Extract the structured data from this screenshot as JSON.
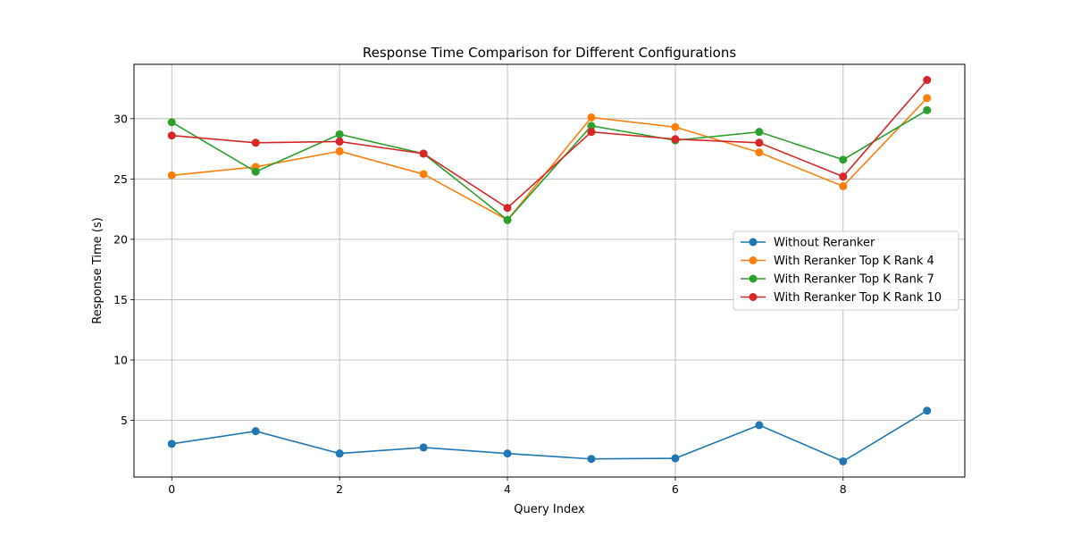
{
  "chart_data": {
    "type": "line",
    "title": "Response Time Comparison for Different Configurations",
    "xlabel": "Query Index",
    "ylabel": "Response Time (s)",
    "x": [
      0,
      1,
      2,
      3,
      4,
      5,
      6,
      7,
      8,
      9
    ],
    "xlim": [
      -0.45,
      9.45
    ],
    "ylim": [
      0.3,
      34.5
    ],
    "xticks": [
      0,
      2,
      4,
      6,
      8
    ],
    "yticks": [
      5,
      10,
      15,
      20,
      25,
      30
    ],
    "grid": true,
    "legend_position": "center-right",
    "series": [
      {
        "name": "Without Reranker",
        "color": "#1f77b4",
        "values": [
          3.05,
          4.1,
          2.25,
          2.75,
          2.25,
          1.8,
          1.85,
          4.6,
          1.6,
          5.8
        ]
      },
      {
        "name": "With Reranker Top K Rank 4",
        "color": "#ff7f0e",
        "values": [
          25.3,
          26.0,
          27.3,
          25.4,
          21.6,
          30.1,
          29.3,
          27.2,
          24.4,
          31.7
        ]
      },
      {
        "name": "With Reranker Top K Rank 7",
        "color": "#2ca02c",
        "values": [
          29.7,
          25.6,
          28.7,
          27.1,
          21.6,
          29.4,
          28.2,
          28.9,
          26.6,
          30.7
        ]
      },
      {
        "name": "With Reranker Top K Rank 10",
        "color": "#d62728",
        "values": [
          28.6,
          28.0,
          28.1,
          27.1,
          22.6,
          28.9,
          28.3,
          28.0,
          25.2,
          33.2
        ]
      }
    ]
  }
}
